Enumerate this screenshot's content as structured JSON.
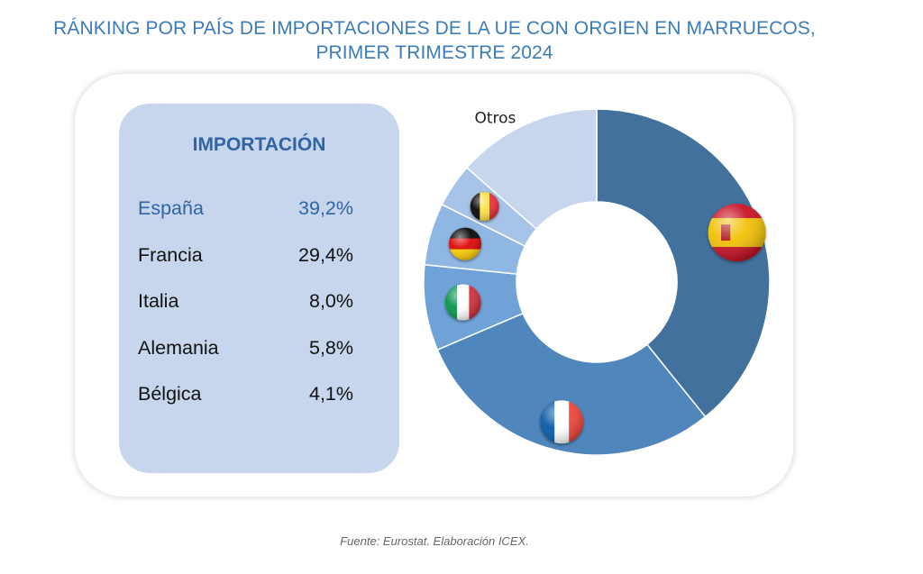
{
  "title_line1": "RÁNKING POR PAÍS DE IMPORTACIONES DE LA UE CON ORGIEN EN MARRUECOS,",
  "title_line2": "PRIMER TRIMESTRE 2024",
  "legend_heading": "IMPORTACIÓN",
  "source": "Fuente: Eurostat. Elaboración ICEX.",
  "chart_data": {
    "type": "pie",
    "variant": "donut",
    "unit": "%",
    "categories": [
      "España",
      "Francia",
      "Italia",
      "Alemania",
      "Bélgica",
      "Otros"
    ],
    "values": [
      39.2,
      29.4,
      8.0,
      5.8,
      4.1,
      13.5
    ],
    "value_labels": [
      "39,2%",
      "29,4%",
      "8,0%",
      "5,8%",
      "4,1%",
      ""
    ],
    "colors": [
      "#41719c",
      "#4f86bc",
      "#6fa3d8",
      "#8fb7e3",
      "#a7c4e8",
      "#c6d6ec"
    ],
    "slice_icons": [
      "spain-flag-icon",
      "france-flag-icon",
      "italy-flag-icon",
      "germany-flag-icon",
      "belgium-flag-icon",
      ""
    ],
    "slice_text": [
      "",
      "",
      "",
      "",
      "",
      "Otros"
    ],
    "start": "top",
    "direction": "clockwise"
  }
}
